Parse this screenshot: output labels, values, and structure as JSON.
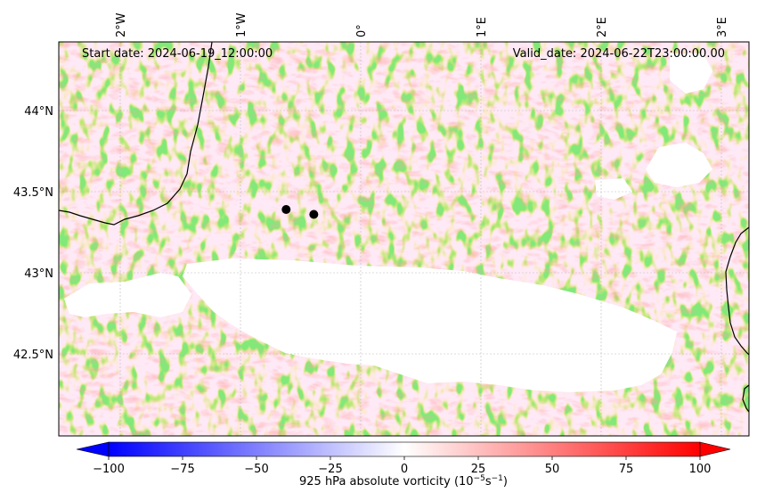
{
  "map": {
    "start_date_label": "Start date: 2024-06-19_12:00:00",
    "valid_date_label": "Valid_date: 2024-06-22T23:00:00.00",
    "lon_ticks": [
      {
        "label": "2°W",
        "lon": -2
      },
      {
        "label": "1°W",
        "lon": -1
      },
      {
        "label": "0°",
        "lon": 0
      },
      {
        "label": "1°E",
        "lon": 1
      },
      {
        "label": "2°E",
        "lon": 2
      },
      {
        "label": "3°E",
        "lon": 3
      }
    ],
    "lat_ticks": [
      {
        "label": "44°N",
        "lat": 44.0
      },
      {
        "label": "43.5°N",
        "lat": 43.5
      },
      {
        "label": "43°N",
        "lat": 43.0
      },
      {
        "label": "42.5°N",
        "lat": 42.5
      }
    ],
    "extent": {
      "lon_min": -2.5,
      "lon_max": 3.3,
      "lat_min": 42.0,
      "lat_max": 44.4
    },
    "markers": [
      {
        "lon": -0.62,
        "lat": 43.39
      },
      {
        "lon": -0.39,
        "lat": 43.36
      }
    ],
    "gridlines": true,
    "masked_terrain_region": "Pyrenees (white, below ground)"
  },
  "colorbar": {
    "label_text": "925 hPa absolute vorticity (10",
    "label_exp1": "−5",
    "label_mid": "s",
    "label_exp2": "−1",
    "label_close": ")",
    "ticks": [
      "−100",
      "−75",
      "−50",
      "−25",
      "0",
      "25",
      "50",
      "75",
      "100"
    ],
    "min": -100,
    "max": 100,
    "colormap": "bwr",
    "extend": "both",
    "negative_color": "#0000ff",
    "positive_color": "#ff0000"
  }
}
